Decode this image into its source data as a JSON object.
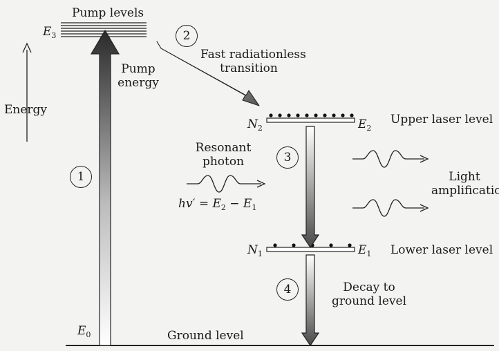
{
  "labels": {
    "pump_levels": "Pump levels",
    "energy": "Energy",
    "pump_energy_1": "Pump",
    "pump_energy_2": "energy",
    "fast_1": "Fast radiationless",
    "fast_2": "transition",
    "upper_laser_level": "Upper laser level",
    "lower_laser_level": "Lower laser level",
    "resonant_1": "Resonant",
    "resonant_2": "photon",
    "light_1": "Light",
    "light_2": "amplification",
    "decay_1": "Decay to",
    "decay_2": "ground level",
    "ground_level": "Ground level"
  },
  "symbols": {
    "E3": {
      "main": "E",
      "sub": "3"
    },
    "E2": {
      "main": "E",
      "sub": "2"
    },
    "E1": {
      "main": "E",
      "sub": "1"
    },
    "E0": {
      "main": "E",
      "sub": "0"
    },
    "N2": {
      "main": "N",
      "sub": "2"
    },
    "N1": {
      "main": "N",
      "sub": "1"
    },
    "equation": {
      "lhs": "hv′ = E",
      "s1": "2",
      "mid": " − E",
      "s2": "1"
    }
  },
  "steps": [
    "1",
    "2",
    "3",
    "4"
  ]
}
